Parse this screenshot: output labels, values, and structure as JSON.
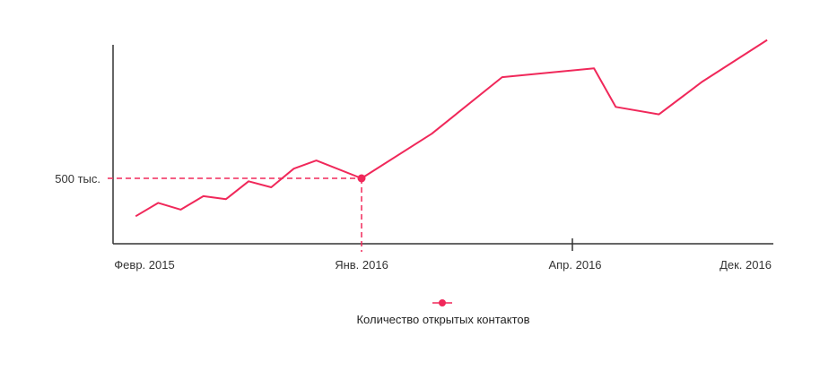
{
  "chart_data": {
    "type": "line",
    "title": "",
    "xlabel": "",
    "ylabel": "",
    "x_tick_labels": [
      "Февр. 2015",
      "Янв. 2016",
      "Апр. 2016",
      "Дек. 2016"
    ],
    "y_tick_labels": [
      "500 тыс."
    ],
    "legend_position": "bottom-center",
    "grid": false,
    "series": [
      {
        "name": "Количество открытых контактов",
        "color": "#f0285a",
        "x": [
          "2015-03",
          "2015-04",
          "2015-05",
          "2015-06",
          "2015-07",
          "2015-08",
          "2015-09",
          "2015-10",
          "2015-11",
          "2016-01",
          "2016-02",
          "2016-03",
          "2016-05",
          "2016-06",
          "2016-08",
          "2016-10",
          "2017-01"
        ],
        "values": [
          245,
          335,
          290,
          380,
          360,
          480,
          440,
          565,
          620,
          500,
          800,
          1180,
          1240,
          980,
          930,
          1150,
          1430
        ]
      }
    ],
    "highlight": {
      "x": "2016-01",
      "label": "500 тыс."
    }
  },
  "legend": {
    "label": "Количество открытых контактов"
  },
  "colors": {
    "line": "#f0285a",
    "axis": "#333333"
  }
}
